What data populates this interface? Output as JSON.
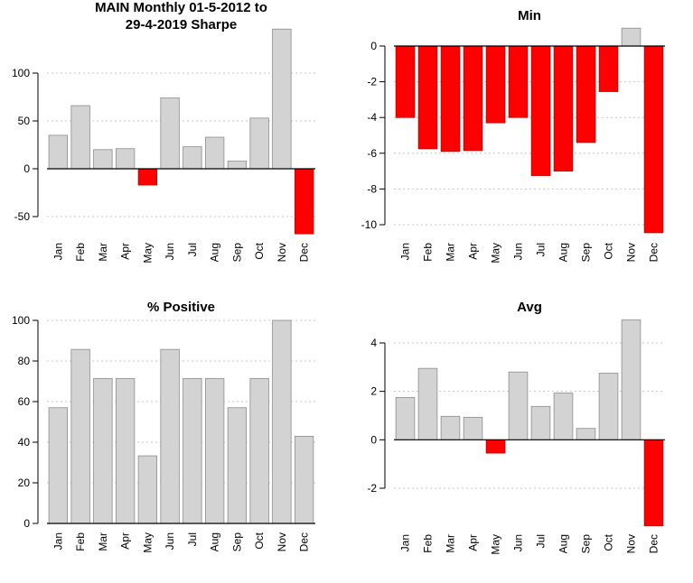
{
  "colors": {
    "positive": "#d3d3d3",
    "negative": "#ff0000",
    "grid": "#c8c8c8",
    "bar_border": "#8c8c8c"
  },
  "chart_data": [
    {
      "id": "sharpe",
      "type": "bar",
      "title_lines": [
        "MAIN Monthly 01-5-2012 to",
        "29-4-2019 Sharpe"
      ],
      "categories": [
        "Jan",
        "Feb",
        "Mar",
        "Apr",
        "May",
        "Jun",
        "Jul",
        "Aug",
        "Sep",
        "Oct",
        "Nov",
        "Dec"
      ],
      "values": [
        35,
        66,
        20,
        21,
        -17,
        74,
        23,
        33,
        8,
        53,
        146,
        -68
      ],
      "ylim": [
        -68,
        146
      ],
      "yticks": [
        -50,
        0,
        50,
        100
      ],
      "grid": true,
      "zero_line": true
    },
    {
      "id": "min",
      "type": "bar",
      "title_lines": [
        "Min"
      ],
      "categories": [
        "Jan",
        "Feb",
        "Mar",
        "Apr",
        "May",
        "Jun",
        "Jul",
        "Aug",
        "Sep",
        "Oct",
        "Nov",
        "Dec"
      ],
      "values": [
        -4.0,
        -5.75,
        -5.9,
        -5.85,
        -4.3,
        -4.0,
        -7.25,
        -7.0,
        -5.4,
        -2.55,
        1.0,
        -10.45
      ],
      "ylim": [
        -10.45,
        1.0
      ],
      "yticks": [
        -10,
        -8,
        -6,
        -4,
        -2,
        0
      ],
      "grid": true,
      "zero_line": true
    },
    {
      "id": "pct_positive",
      "type": "bar",
      "title_lines": [
        "% Positive"
      ],
      "categories": [
        "Jan",
        "Feb",
        "Mar",
        "Apr",
        "May",
        "Jun",
        "Jul",
        "Aug",
        "Sep",
        "Oct",
        "Nov",
        "Dec"
      ],
      "values": [
        57,
        85.7,
        71.4,
        71.4,
        33.3,
        85.7,
        71.4,
        71.4,
        57,
        71.4,
        100,
        42.9
      ],
      "ylim": [
        0,
        100
      ],
      "yticks": [
        0,
        20,
        40,
        60,
        80,
        100
      ],
      "grid": true,
      "zero_line": true
    },
    {
      "id": "avg",
      "type": "bar",
      "title_lines": [
        "Avg"
      ],
      "categories": [
        "Jan",
        "Feb",
        "Mar",
        "Apr",
        "May",
        "Jun",
        "Jul",
        "Aug",
        "Sep",
        "Oct",
        "Nov",
        "Dec"
      ],
      "values": [
        1.75,
        2.95,
        0.97,
        0.93,
        -0.55,
        2.8,
        1.38,
        1.93,
        0.47,
        2.75,
        4.95,
        -3.55
      ],
      "ylim": [
        -3.55,
        4.95
      ],
      "yticks": [
        -2,
        0,
        2,
        4
      ],
      "grid": true,
      "zero_line": true
    }
  ]
}
